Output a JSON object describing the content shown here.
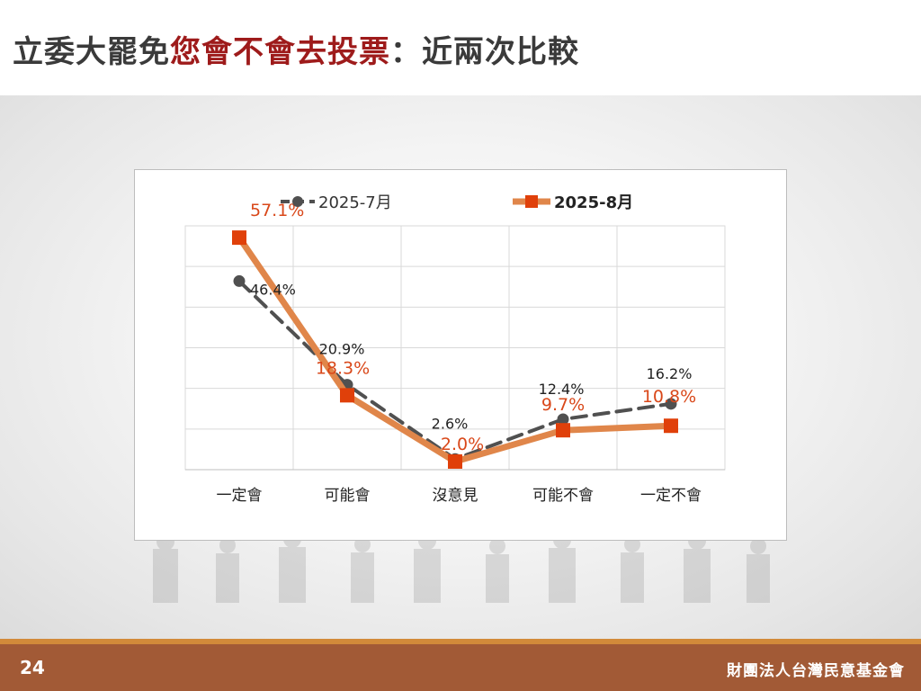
{
  "slide": {
    "title_part1": "立委大罷免",
    "title_highlight": "您會不會去投票",
    "title_part2": "：近兩次比較",
    "page_number": "24",
    "organization": "財團法人台灣民意基金會"
  },
  "colors": {
    "series_jul": "#505050",
    "series_aug": "#e0864a",
    "marker_aug": "#e0400a",
    "label_aug": "#d9481a",
    "footer": "#a25a36",
    "title_highlight": "#9e1b1b"
  },
  "chart_data": {
    "type": "line",
    "title": "",
    "xlabel": "",
    "ylabel": "",
    "categories": [
      "一定會",
      "可能會",
      "沒意見",
      "可能不會",
      "一定不會"
    ],
    "ylim": [
      0,
      60
    ],
    "grid": true,
    "legend_position": "top",
    "series": [
      {
        "name": "2025-7月",
        "values": [
          46.4,
          20.9,
          2.6,
          12.4,
          16.2
        ],
        "labels": [
          "46.4%",
          "20.9%",
          "2.6%",
          "12.4%",
          "16.2%"
        ],
        "style": "dashed",
        "marker": "circle"
      },
      {
        "name": "2025-8月",
        "values": [
          57.1,
          18.3,
          2.0,
          9.7,
          10.8
        ],
        "labels": [
          "57.1%",
          "18.3%",
          "2.0%",
          "9.7%",
          "10.8%"
        ],
        "style": "solid",
        "marker": "square"
      }
    ]
  }
}
